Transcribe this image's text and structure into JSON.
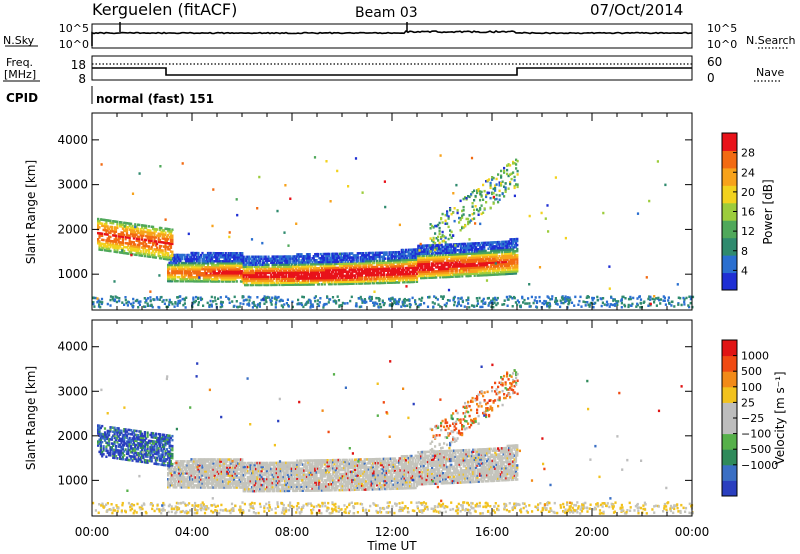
{
  "header": {
    "station": "Kerguelen (fitACF)",
    "beam": "Beam 03",
    "date": "07/Oct/2014"
  },
  "sky_panel": {
    "left_label": "N.Sky",
    "left_ticks": [
      "10^5",
      "10^0"
    ],
    "right_label": "N.Search",
    "right_ticks": [
      "10^5",
      "10^0"
    ]
  },
  "freq_panel": {
    "left_label_line1": "Freq.",
    "left_label_line2": "[MHz]",
    "left_ticks": [
      "18",
      "8"
    ],
    "right_label": "Nave",
    "right_ticks": [
      "60",
      "0"
    ]
  },
  "cpid": {
    "label": "CPID",
    "mode": "normal (fast) 151"
  },
  "time_axis": {
    "label": "Time UT",
    "tick_labels": [
      "00:00",
      "04:00",
      "08:00",
      "12:00",
      "16:00",
      "20:00",
      "00:00"
    ],
    "range_hours": [
      0,
      24
    ]
  },
  "chart_data": [
    {
      "type": "heatmap",
      "name": "power",
      "xlabel": "Time UT",
      "ylabel": "Slant Range [km]",
      "x_range_hours": [
        0,
        24
      ],
      "ylim": [
        200,
        4600
      ],
      "y_ticks": [
        "1000",
        "2000",
        "3000",
        "4000"
      ],
      "colorbar": {
        "label": "Power [dB]",
        "range": [
          0,
          32
        ],
        "ticks": [
          "4",
          "8",
          "12",
          "16",
          "20",
          "24",
          "28"
        ],
        "colors": [
          "#1f2fd4",
          "#2a6fd0",
          "#2f8a6e",
          "#4fa85a",
          "#9ccc3c",
          "#f2d21e",
          "#f7a21b",
          "#f26a12",
          "#e8121a"
        ]
      }
    },
    {
      "type": "heatmap",
      "name": "velocity",
      "xlabel": "Time UT",
      "ylabel": "Slant Range [km]",
      "x_range_hours": [
        0,
        24
      ],
      "ylim": [
        200,
        4600
      ],
      "y_ticks": [
        "1000",
        "2000",
        "3000",
        "4000"
      ],
      "colorbar": {
        "label": "Velocity [m s⁻¹]",
        "ticks": [
          "1000",
          "500",
          "100",
          "25",
          "−25",
          "−100",
          "−500",
          "−1000"
        ],
        "colors": [
          "#2a3fbf",
          "#3a6fc4",
          "#2f8a5a",
          "#56b04a",
          "#bdbdbd",
          "#bdbdbd",
          "#f2c21e",
          "#f28a18",
          "#f04a12",
          "#e01414"
        ]
      }
    }
  ]
}
